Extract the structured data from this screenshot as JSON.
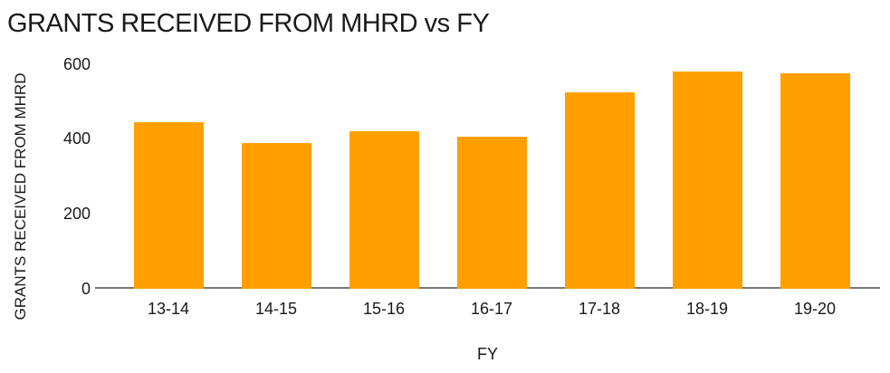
{
  "chart_data": {
    "type": "bar",
    "title": "GRANTS RECEIVED FROM MHRD vs FY",
    "xlabel": "FY",
    "ylabel": "GRANTS RECEIVED FROM MHRD",
    "categories": [
      "13-14",
      "14-15",
      "15-16",
      "16-17",
      "17-18",
      "18-19",
      "19-20"
    ],
    "values": [
      445,
      390,
      420,
      405,
      525,
      580,
      575
    ],
    "yticks": [
      0,
      200,
      400,
      600
    ],
    "ylim": [
      0,
      600
    ],
    "grid": "off",
    "legend": "none",
    "colors": {
      "bar": "#FFA000",
      "axis_line": "#77787B",
      "text": "#1A1A1A",
      "background": "#FFFFFF"
    }
  }
}
